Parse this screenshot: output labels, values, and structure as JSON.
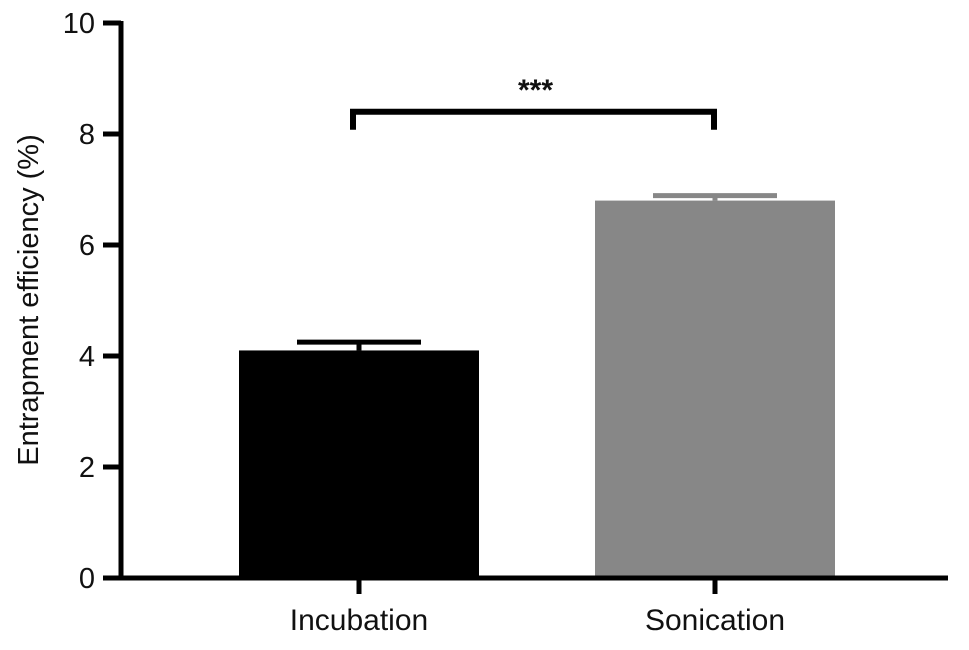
{
  "chart_data": {
    "type": "bar",
    "title": "",
    "xlabel": "",
    "ylabel": "Entrapment efficiency (%)",
    "categories": [
      "Incubation",
      "Sonication"
    ],
    "values": [
      4.1,
      6.8
    ],
    "error": [
      0.15,
      0.09
    ],
    "colors": [
      "#000000",
      "#878787"
    ],
    "ylim": [
      0,
      10
    ],
    "yticks": [
      0,
      2,
      4,
      6,
      8,
      10
    ],
    "grid": false,
    "legend": "none",
    "significance": {
      "label": "***",
      "between": [
        "Incubation",
        "Sonication"
      ],
      "level": 8.4
    }
  }
}
